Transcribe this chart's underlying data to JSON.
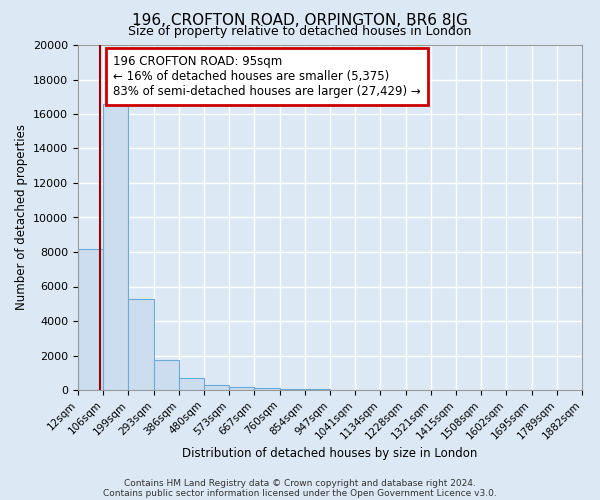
{
  "title": "196, CROFTON ROAD, ORPINGTON, BR6 8JG",
  "subtitle": "Size of property relative to detached houses in London",
  "xlabel": "Distribution of detached houses by size in London",
  "ylabel": "Number of detached properties",
  "bar_color": "#ccddf0",
  "bar_edge_color": "#6aaad4",
  "background_color": "#dce9f5",
  "grid_color": "white",
  "bin_labels": [
    "12sqm",
    "106sqm",
    "199sqm",
    "293sqm",
    "386sqm",
    "480sqm",
    "573sqm",
    "667sqm",
    "760sqm",
    "854sqm",
    "947sqm",
    "1041sqm",
    "1134sqm",
    "1228sqm",
    "1321sqm",
    "1415sqm",
    "1508sqm",
    "1602sqm",
    "1695sqm",
    "1789sqm",
    "1882sqm"
  ],
  "bar_heights": [
    8200,
    16600,
    5300,
    1750,
    700,
    280,
    200,
    100,
    70,
    30,
    20,
    10,
    5,
    5,
    3,
    3,
    2,
    2,
    2,
    2
  ],
  "ylim": [
    0,
    20000
  ],
  "yticks": [
    0,
    2000,
    4000,
    6000,
    8000,
    10000,
    12000,
    14000,
    16000,
    18000,
    20000
  ],
  "annotation_title": "196 CROFTON ROAD: 95sqm",
  "annotation_line1": "← 16% of detached houses are smaller (5,375)",
  "annotation_line2": "83% of semi-detached houses are larger (27,429) →",
  "annotation_box_color": "white",
  "annotation_box_edge": "#cc0000",
  "red_line_color": "#990000",
  "footer1": "Contains HM Land Registry data © Crown copyright and database right 2024.",
  "footer2": "Contains public sector information licensed under the Open Government Licence v3.0."
}
